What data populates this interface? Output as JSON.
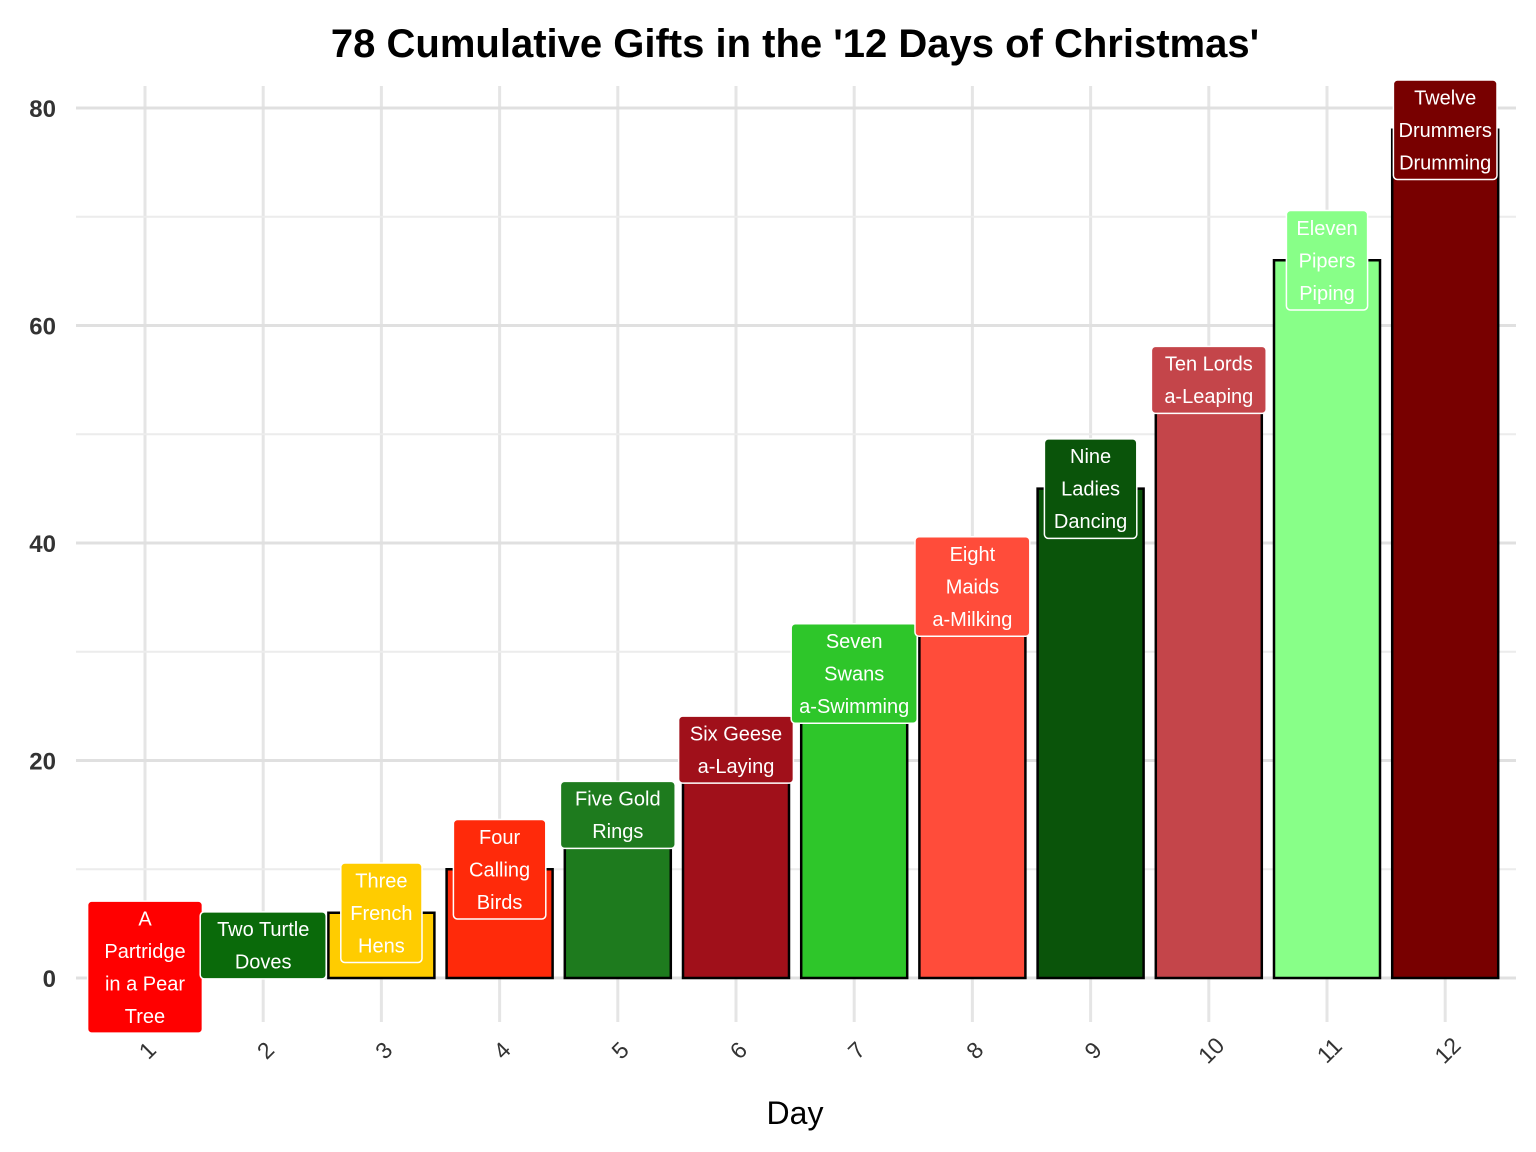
{
  "chart_data": {
    "type": "bar",
    "title": "78 Cumulative Gifts in the '12 Days of Christmas'",
    "xlabel": "Day",
    "ylabel": "",
    "categories": [
      "1",
      "2",
      "3",
      "4",
      "5",
      "6",
      "7",
      "8",
      "9",
      "10",
      "11",
      "12"
    ],
    "values": [
      1,
      3,
      6,
      10,
      15,
      21,
      28,
      36,
      45,
      55,
      66,
      78
    ],
    "labels": [
      [
        "A",
        "Partridge",
        "in a Pear",
        "Tree"
      ],
      [
        "Two Turtle",
        "Doves"
      ],
      [
        "Three",
        "French",
        "Hens"
      ],
      [
        "Four",
        "Calling",
        "Birds"
      ],
      [
        "Five Gold",
        "Rings"
      ],
      [
        "Six Geese",
        "a-Laying"
      ],
      [
        "Seven",
        "Swans",
        "a-Swimming"
      ],
      [
        "Eight",
        "Maids",
        "a-Milking"
      ],
      [
        "Nine",
        "Ladies",
        "Dancing"
      ],
      [
        "Ten Lords",
        "a-Leaping"
      ],
      [
        "Eleven",
        "Pipers",
        "Piping"
      ],
      [
        "Twelve",
        "Drummers",
        "Drumming"
      ]
    ],
    "colors": [
      "#ff0000",
      "#0a6a0a",
      "#ffcc00",
      "#ff2a0a",
      "#1e7b1e",
      "#a0101a",
      "#2ec62a",
      "#ff4c3a",
      "#0a540a",
      "#c4454a",
      "#88ff88",
      "#780000"
    ],
    "ylim": [
      -5,
      82
    ],
    "yticks": [
      0,
      20,
      40,
      60,
      80
    ],
    "grid": true,
    "legend": "none"
  }
}
